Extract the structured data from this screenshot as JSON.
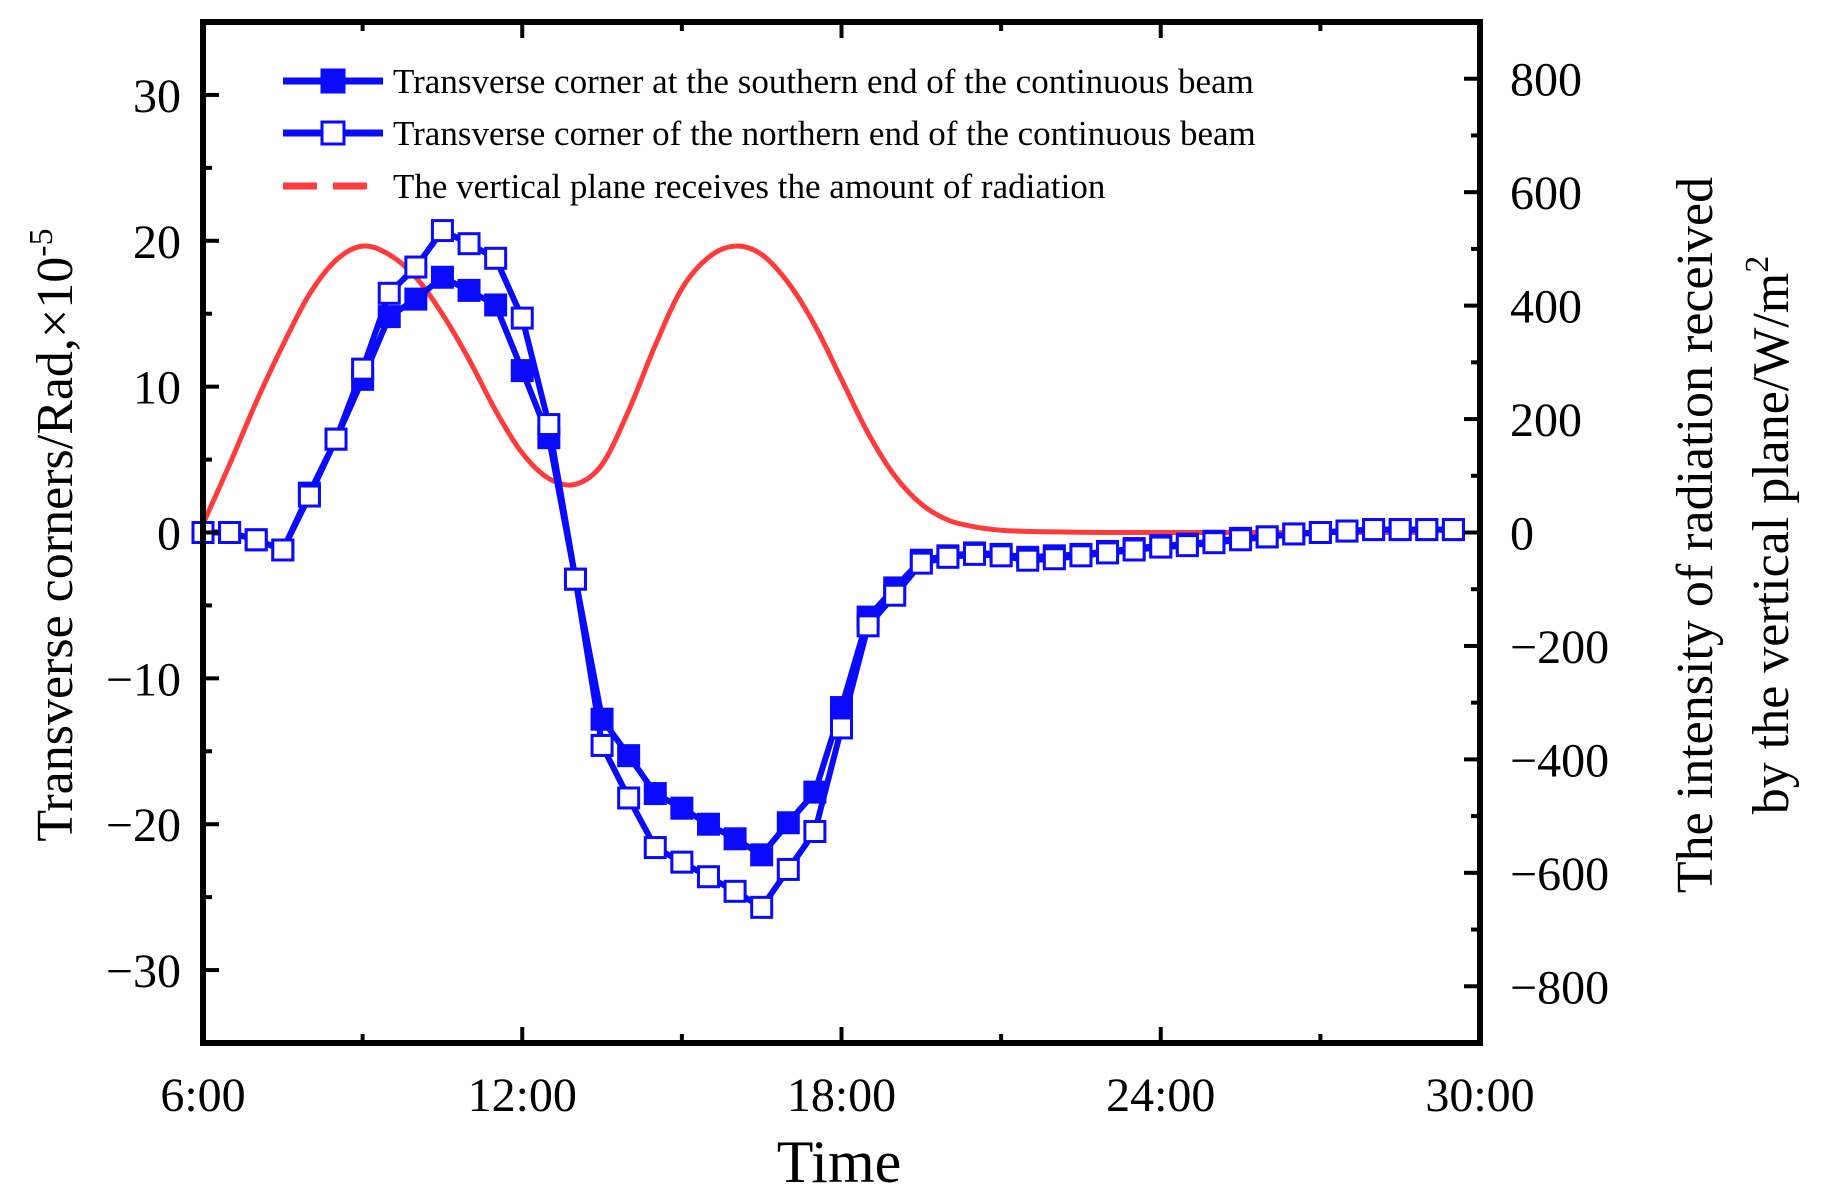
{
  "chart_data": {
    "type": "line",
    "xlabel": "Time",
    "ylabel_left": "Transverse corners/Rad,×10",
    "ylabel_left_exponent": "-5",
    "ylabel_right_line1": "The intensity of radiation received",
    "ylabel_right_line2": "by the vertical plane/W/m",
    "ylabel_right_exponent": "2",
    "x_tick_labels": [
      "6:00",
      "12:00",
      "18:00",
      "24:00",
      "30:00"
    ],
    "x_tick_values": [
      6,
      12,
      18,
      24,
      30
    ],
    "xlim": [
      6,
      30
    ],
    "y_left_ticks": [
      -30,
      -20,
      -10,
      0,
      10,
      20,
      30
    ],
    "ylim_left": [
      -35,
      35
    ],
    "y_right_ticks": [
      -800,
      -600,
      -400,
      -200,
      0,
      200,
      400,
      600,
      800
    ],
    "ylim_right": [
      -900,
      900
    ],
    "grid": false,
    "legend_position": "top",
    "colors": {
      "beam": "#0a0aff",
      "radiation": "#ff3b3b"
    },
    "series": [
      {
        "name": "Transverse corner at the southern end of the continuous beam",
        "axis": "left",
        "marker": "filled-square",
        "x": [
          6.0,
          6.5,
          7.0,
          7.5,
          8.0,
          8.5,
          9.0,
          9.5,
          10.0,
          10.5,
          11.0,
          11.5,
          12.0,
          12.5,
          13.0,
          13.5,
          14.0,
          14.5,
          15.0,
          15.5,
          16.0,
          16.5,
          17.0,
          17.5,
          18.0,
          18.5,
          19.0,
          19.5,
          20.0,
          20.5,
          21.0,
          21.5,
          22.0,
          22.5,
          23.0,
          23.5,
          24.0,
          24.5,
          25.0,
          25.5,
          26.0,
          26.5,
          27.0,
          27.5,
          28.0,
          28.5,
          29.0,
          29.5
        ],
        "values": [
          0,
          0,
          -0.5,
          -1.2,
          2.7,
          6.4,
          10.5,
          14.8,
          16.0,
          17.5,
          16.6,
          15.6,
          11.1,
          6.5,
          -3.2,
          -12.8,
          -15.3,
          -17.9,
          -18.9,
          -20.0,
          -21.0,
          -22.1,
          -19.9,
          -17.8,
          -12.0,
          -5.8,
          -3.8,
          -1.9,
          -1.6,
          -1.4,
          -1.5,
          -1.7,
          -1.6,
          -1.5,
          -1.3,
          -1.1,
          -0.9,
          -0.8,
          -0.6,
          -0.4,
          -0.3,
          -0.1,
          0.0,
          0.1,
          0.2,
          0.2,
          0.2,
          0.2
        ]
      },
      {
        "name": "Transverse corner of the northern end of the continuous beam",
        "axis": "left",
        "marker": "open-square",
        "x": [
          6.0,
          6.5,
          7.0,
          7.5,
          8.0,
          8.5,
          9.0,
          9.5,
          10.0,
          10.5,
          11.0,
          11.5,
          12.0,
          12.5,
          13.0,
          13.5,
          14.0,
          14.5,
          15.0,
          15.5,
          16.0,
          16.5,
          17.0,
          17.5,
          18.0,
          18.5,
          19.0,
          19.5,
          20.0,
          20.5,
          21.0,
          21.5,
          22.0,
          22.5,
          23.0,
          23.5,
          24.0,
          24.5,
          25.0,
          25.5,
          26.0,
          26.5,
          27.0,
          27.5,
          28.0,
          28.5,
          29.0,
          29.5
        ],
        "values": [
          0,
          0,
          -0.5,
          -1.2,
          2.5,
          6.4,
          11.2,
          16.4,
          18.2,
          20.7,
          19.8,
          18.8,
          14.7,
          7.4,
          -3.2,
          -14.6,
          -18.2,
          -21.6,
          -22.6,
          -23.6,
          -24.6,
          -25.7,
          -23.1,
          -20.5,
          -13.4,
          -6.4,
          -4.3,
          -2.1,
          -1.7,
          -1.5,
          -1.6,
          -1.9,
          -1.8,
          -1.6,
          -1.4,
          -1.2,
          -1.0,
          -0.9,
          -0.7,
          -0.5,
          -0.3,
          -0.1,
          0.0,
          0.1,
          0.2,
          0.2,
          0.2,
          0.2
        ]
      },
      {
        "name": "The vertical plane receives the amount of radiation",
        "axis": "right",
        "marker": "none",
        "x": [
          6.0,
          6.5,
          7.0,
          7.5,
          8.0,
          8.5,
          9.0,
          9.5,
          10.0,
          10.5,
          11.0,
          11.5,
          12.0,
          12.5,
          13.0,
          13.5,
          14.0,
          14.5,
          15.0,
          15.5,
          16.0,
          16.5,
          17.0,
          17.5,
          18.0,
          18.5,
          19.0,
          19.5,
          20.0,
          20.5,
          21.0,
          21.5,
          22.0,
          23.0,
          24.0,
          25.0,
          26.0,
          27.0,
          28.0,
          29.0
        ],
        "values": [
          15,
          120,
          230,
          330,
          420,
          480,
          505,
          490,
          450,
          385,
          305,
          215,
          140,
          95,
          85,
          120,
          215,
          330,
          430,
          485,
          505,
          490,
          440,
          365,
          270,
          175,
          100,
          50,
          22,
          10,
          4,
          2,
          1,
          0,
          0,
          0,
          0,
          0,
          0,
          0
        ]
      }
    ]
  }
}
